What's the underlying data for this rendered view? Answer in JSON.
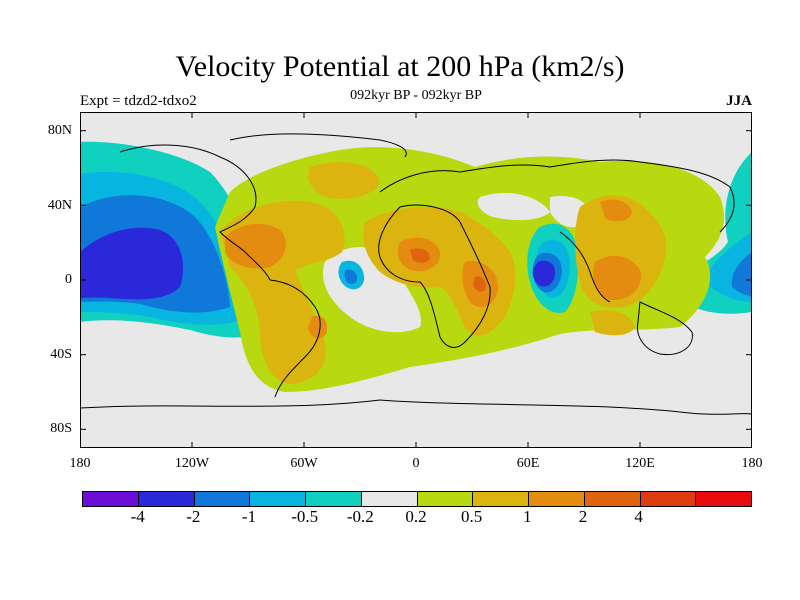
{
  "title": "Velocity Potential at 200 hPa (km2/s)",
  "experiment_label": "Expt = tdzd2-tdxo2",
  "period_label": "092kyr BP - 092kyr BP",
  "season_label": "JJA",
  "latitude_labels": [
    "80N",
    "40N",
    "0",
    "40S",
    "80S"
  ],
  "longitude_labels": [
    "180",
    "120W",
    "60W",
    "0",
    "60E",
    "120E",
    "180"
  ],
  "colorbar": {
    "colors": [
      "#6b0fd8",
      "#2a28d8",
      "#0f78d8",
      "#08b4e0",
      "#10d0c0",
      "#e8e8e8",
      "#b8d810",
      "#dcb410",
      "#e48c10",
      "#e06410",
      "#dc3c10",
      "#e80c0c"
    ],
    "labels": [
      "-4",
      "-2",
      "-1",
      "-0.5",
      "-0.2",
      "0.2",
      "0.5",
      "1",
      "2",
      "4"
    ]
  },
  "colors": {
    "background_neutral": "#e8e8e8",
    "coastline": "#000000"
  }
}
